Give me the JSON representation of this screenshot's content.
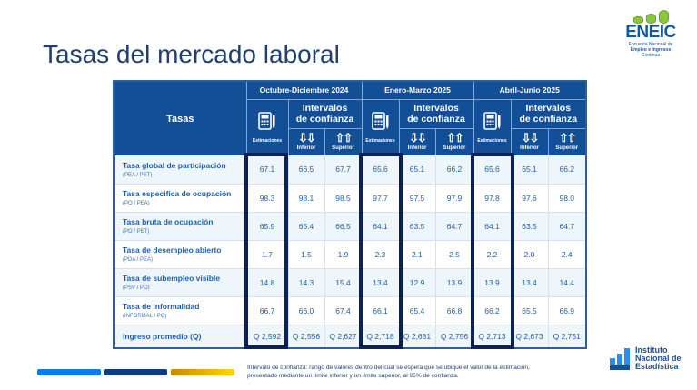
{
  "title": "Tasas del mercado laboral",
  "logo": {
    "name": "ENEIC",
    "subtitle": [
      "Encuesta Nacional de",
      "Empleo e Ingresos",
      "Continua"
    ]
  },
  "table": {
    "header_tasas": "Tasas",
    "periods": [
      "Octubre-Diciembre 2024",
      "Enero-Marzo 2025",
      "Abril-Junio 2025"
    ],
    "intervals_label": [
      "Intervalos",
      "de confianza"
    ],
    "estimaciones": "Estimaciones",
    "inferior": "Inferior",
    "superior": "Superior",
    "rows": [
      {
        "name": "Tasa global de participación",
        "sub": "(PEA / PET)",
        "values": [
          "67.1",
          "66.5",
          "67.7",
          "65.6",
          "65.1",
          "66.2",
          "65.6",
          "65.1",
          "66.2"
        ]
      },
      {
        "name": "Tasa especifica de ocupación",
        "sub": "(PO / PEA)",
        "values": [
          "98.3",
          "98.1",
          "98.5",
          "97.7",
          "97.5",
          "97.9",
          "97.8",
          "97.6",
          "98.0"
        ]
      },
      {
        "name": "Tasa bruta de ocupación",
        "sub": "(PO / PET)",
        "values": [
          "65.9",
          "65.4",
          "66.5",
          "64.1",
          "63.5",
          "64.7",
          "64.1",
          "63.5",
          "64.7"
        ]
      },
      {
        "name": "Tasa de desempleo abierto",
        "sub": "(PDA / PEA)",
        "values": [
          "1.7",
          "1.5",
          "1.9",
          "2.3",
          "2.1",
          "2.5",
          "2.2",
          "2.0",
          "2.4"
        ]
      },
      {
        "name": "Tasa de subempleo visible",
        "sub": "(PSV / PO)",
        "values": [
          "14.8",
          "14.3",
          "15.4",
          "13.4",
          "12.9",
          "13.9",
          "13.9",
          "13.4",
          "14.4"
        ]
      },
      {
        "name": "Tasa de informalidad",
        "sub": "(INFORMAL / PO)",
        "values": [
          "66.7",
          "66.0",
          "67.4",
          "66.1",
          "65.4",
          "66.8",
          "66.2",
          "65.5",
          "66.9"
        ]
      },
      {
        "name": "Ingreso promedio (Q)",
        "sub": "",
        "values": [
          "Q 2,592",
          "Q 2,556",
          "Q 2,627",
          "Q 2,718",
          "Q 2,681",
          "Q 2,756",
          "Q 2,713",
          "Q 2,673",
          "Q 2,751"
        ]
      }
    ]
  },
  "note": "Intervalo de confianza: rango de valores dentro del cual se espera que se ubique el valor de la estimación, presentado mediante un límite inferior y un límite superior, al 95% de confianza.",
  "ine": [
    "Instituto",
    "Nacional de",
    "Estadística"
  ],
  "colors": {
    "header": "#124f97",
    "highlight": "#0a2256",
    "bar1": "#0a7cf0",
    "bar2": "#0e3c7e",
    "bar3": "#f2c200"
  }
}
